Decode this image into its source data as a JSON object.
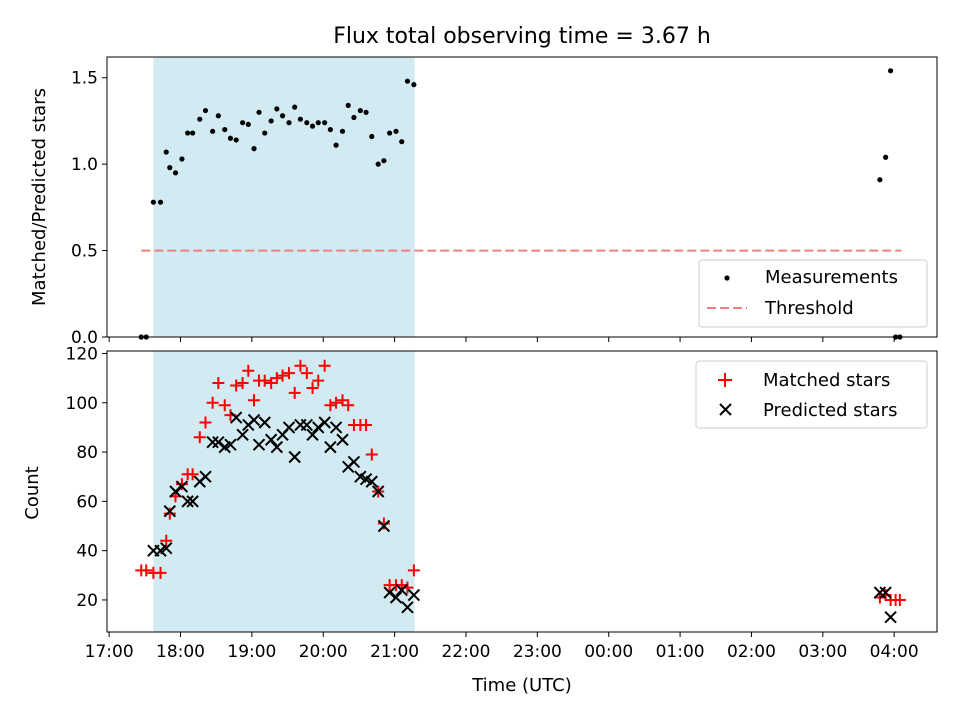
{
  "title": "Flux total observing time = 3.67 h",
  "chart_data": [
    {
      "type": "scatter",
      "ylabel": "Matched/Predicted stars",
      "ylim": [
        0,
        1.62
      ],
      "yticks": [
        "0.0",
        "0.5",
        "1.0",
        "1.5"
      ],
      "ytick_values": [
        0,
        0.5,
        1.0,
        1.5
      ],
      "highlight_band": {
        "from": 17.62,
        "to": 21.28,
        "color": "#add8e6"
      },
      "threshold": {
        "name": "Threshold",
        "value": 0.5,
        "from": 17.45,
        "to": 28.1,
        "color": "#f08080"
      },
      "legend_position": "lower right",
      "series": [
        {
          "name": "Measurements",
          "color": "#000000",
          "marker": "dot",
          "x": [
            17.45,
            17.52,
            17.62,
            17.72,
            17.8,
            17.85,
            17.93,
            18.02,
            18.1,
            18.17,
            18.27,
            18.35,
            18.45,
            18.53,
            18.62,
            18.7,
            18.78,
            18.87,
            18.95,
            19.03,
            19.1,
            19.18,
            19.27,
            19.35,
            19.43,
            19.52,
            19.6,
            19.68,
            19.77,
            19.85,
            19.93,
            20.02,
            20.1,
            20.18,
            20.27,
            20.35,
            20.43,
            20.52,
            20.6,
            20.68,
            20.77,
            20.85,
            20.93,
            21.02,
            21.1,
            21.18,
            21.27,
            27.8,
            27.88,
            27.95,
            28.02,
            28.08
          ],
          "y": [
            0,
            0,
            0.78,
            0.78,
            1.07,
            0.98,
            0.95,
            1.03,
            1.18,
            1.18,
            1.26,
            1.31,
            1.19,
            1.28,
            1.2,
            1.15,
            1.14,
            1.24,
            1.23,
            1.09,
            1.3,
            1.18,
            1.25,
            1.32,
            1.28,
            1.24,
            1.33,
            1.26,
            1.24,
            1.22,
            1.24,
            1.24,
            1.2,
            1.11,
            1.19,
            1.34,
            1.27,
            1.31,
            1.3,
            1.16,
            1.0,
            1.02,
            1.18,
            1.19,
            1.13,
            1.48,
            1.46,
            0.91,
            1.04,
            1.54,
            0,
            0
          ]
        }
      ]
    },
    {
      "type": "scatter",
      "xlabel": "Time (UTC)",
      "ylabel": "Count",
      "xlim": [
        16.97,
        28.6
      ],
      "ylim": [
        7,
        121
      ],
      "yticks": [
        "20",
        "40",
        "60",
        "80",
        "100",
        "120"
      ],
      "ytick_values": [
        20,
        40,
        60,
        80,
        100,
        120
      ],
      "xticks": [
        "17:00",
        "18:00",
        "19:00",
        "20:00",
        "21:00",
        "22:00",
        "23:00",
        "00:00",
        "01:00",
        "02:00",
        "03:00",
        "04:00"
      ],
      "xtick_values": [
        17,
        18,
        19,
        20,
        21,
        22,
        23,
        24,
        25,
        26,
        27,
        28
      ],
      "highlight_band": {
        "from": 17.62,
        "to": 21.28,
        "color": "#add8e6"
      },
      "legend_position": "upper right",
      "series": [
        {
          "name": "Matched stars",
          "color": "#ff0000",
          "marker": "plus",
          "x": [
            17.45,
            17.52,
            17.62,
            17.72,
            17.8,
            17.85,
            17.93,
            18.02,
            18.1,
            18.17,
            18.27,
            18.35,
            18.45,
            18.53,
            18.62,
            18.7,
            18.78,
            18.87,
            18.95,
            19.03,
            19.1,
            19.18,
            19.27,
            19.35,
            19.43,
            19.52,
            19.6,
            19.68,
            19.77,
            19.85,
            19.93,
            20.02,
            20.1,
            20.18,
            20.27,
            20.35,
            20.43,
            20.52,
            20.6,
            20.68,
            20.77,
            20.85,
            20.93,
            21.02,
            21.1,
            21.18,
            21.27,
            27.8,
            27.88,
            27.95,
            28.02,
            28.08
          ],
          "y": [
            32,
            32,
            31,
            31,
            44,
            55,
            62,
            67,
            71,
            71,
            86,
            92,
            100,
            108,
            99,
            95,
            107,
            108,
            113,
            101,
            109,
            109,
            108,
            110,
            111,
            112,
            104,
            115,
            112,
            106,
            109,
            115,
            99,
            100,
            101,
            99,
            91,
            91,
            91,
            79,
            64,
            51,
            26,
            26,
            26,
            25,
            32,
            21,
            22,
            20,
            20,
            20
          ]
        },
        {
          "name": "Predicted stars",
          "color": "#000000",
          "marker": "x",
          "x": [
            17.62,
            17.72,
            17.8,
            17.85,
            17.93,
            18.02,
            18.1,
            18.17,
            18.27,
            18.35,
            18.45,
            18.53,
            18.62,
            18.7,
            18.78,
            18.87,
            18.95,
            19.03,
            19.1,
            19.18,
            19.27,
            19.35,
            19.43,
            19.52,
            19.6,
            19.68,
            19.77,
            19.85,
            19.93,
            20.02,
            20.1,
            20.18,
            20.27,
            20.35,
            20.43,
            20.52,
            20.6,
            20.68,
            20.77,
            20.85,
            20.93,
            21.02,
            21.1,
            21.18,
            21.27,
            27.8,
            27.88,
            27.95
          ],
          "y": [
            40,
            40,
            41,
            56,
            64,
            66,
            60,
            60,
            68,
            70,
            84,
            84,
            82,
            83,
            94,
            87,
            91,
            93,
            83,
            92,
            85,
            82,
            87,
            90,
            78,
            91,
            91,
            87,
            90,
            92,
            82,
            90,
            85,
            74,
            76,
            70,
            69,
            68,
            64,
            50,
            23,
            21,
            24,
            17,
            22,
            23,
            23,
            13
          ]
        }
      ]
    }
  ]
}
